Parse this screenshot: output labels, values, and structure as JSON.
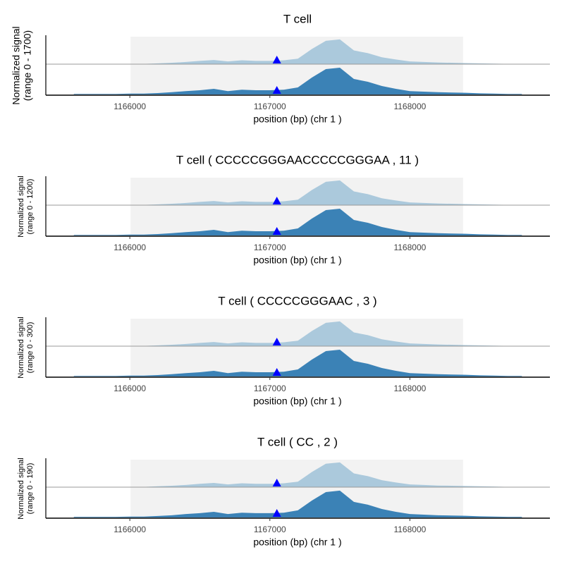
{
  "chart_data": [
    {
      "type": "area",
      "title": "T cell",
      "ylabel": [
        "Normalized signal",
        "(range 0 - 1700)"
      ],
      "xlabel": "position (bp) (chr 1 )",
      "xlim": [
        1165400,
        1169000
      ],
      "xticks": [
        1166000,
        1167000,
        1168000
      ],
      "ylim": [
        0,
        1700
      ],
      "highlight": [
        1166005,
        1168380
      ],
      "marker": 1167050,
      "x": [
        1165600,
        1165700,
        1165800,
        1165900,
        1166000,
        1166100,
        1166200,
        1166300,
        1166400,
        1166500,
        1166600,
        1166700,
        1166800,
        1166900,
        1167000,
        1167100,
        1167200,
        1167300,
        1167400,
        1167500,
        1167600,
        1167700,
        1167800,
        1167900,
        1168000,
        1168100,
        1168200,
        1168300,
        1168400,
        1168500,
        1168600,
        1168700,
        1168800
      ],
      "series": [
        {
          "color": "#abc9dc",
          "values": [
            0,
            0,
            0,
            0,
            17,
            17,
            51,
            85,
            136,
            204,
            255,
            170,
            238,
            204,
            204,
            238,
            340,
            935,
            1445,
            1530,
            850,
            680,
            425,
            289,
            170,
            136,
            102,
            85,
            68,
            51,
            34,
            17,
            17
          ]
        },
        {
          "color": "#3b82b6",
          "values": [
            34,
            34,
            34,
            34,
            51,
            51,
            85,
            136,
            204,
            255,
            340,
            204,
            289,
            255,
            255,
            289,
            425,
            1020,
            1530,
            1615,
            935,
            765,
            510,
            340,
            204,
            170,
            136,
            119,
            102,
            68,
            51,
            34,
            34
          ]
        }
      ]
    },
    {
      "type": "area",
      "title": "T cell ( CCCCCGGGAACCCCCGGGAA , 11 )",
      "ylabel": [
        "Normalized signal",
        "(range 0 - 1200)"
      ],
      "xlabel": "position (bp) (chr 1 )",
      "xlim": [
        1165400,
        1169000
      ],
      "xticks": [
        1166000,
        1167000,
        1168000
      ],
      "ylim": [
        0,
        1200
      ],
      "highlight": [
        1166005,
        1168380
      ],
      "marker": 1167050,
      "x": [
        1165600,
        1165700,
        1165800,
        1165900,
        1166000,
        1166100,
        1166200,
        1166300,
        1166400,
        1166500,
        1166600,
        1166700,
        1166800,
        1166900,
        1167000,
        1167100,
        1167200,
        1167300,
        1167400,
        1167500,
        1167600,
        1167700,
        1167800,
        1167900,
        1168000,
        1168100,
        1168200,
        1168300,
        1168400,
        1168500,
        1168600,
        1168700,
        1168800
      ],
      "series": [
        {
          "color": "#abc9dc",
          "values": [
            0,
            0,
            0,
            0,
            12,
            12,
            36,
            60,
            96,
            144,
            180,
            120,
            168,
            144,
            144,
            168,
            240,
            660,
            1020,
            1080,
            600,
            480,
            300,
            204,
            120,
            96,
            72,
            60,
            48,
            36,
            24,
            12,
            12
          ]
        },
        {
          "color": "#3b82b6",
          "values": [
            24,
            24,
            24,
            24,
            36,
            36,
            60,
            96,
            144,
            180,
            240,
            144,
            204,
            180,
            180,
            204,
            300,
            720,
            1080,
            1140,
            660,
            540,
            360,
            240,
            144,
            120,
            96,
            84,
            72,
            48,
            36,
            24,
            24
          ]
        }
      ]
    },
    {
      "type": "area",
      "title": "T cell ( CCCCCGGGAAC , 3 )",
      "ylabel": [
        "Normalized signal",
        "(range 0 - 300)"
      ],
      "xlabel": "position (bp) (chr 1 )",
      "xlim": [
        1165400,
        1169000
      ],
      "xticks": [
        1166000,
        1167000,
        1168000
      ],
      "ylim": [
        0,
        300
      ],
      "highlight": [
        1166005,
        1168380
      ],
      "marker": 1167050,
      "x": [
        1165600,
        1165700,
        1165800,
        1165900,
        1166000,
        1166100,
        1166200,
        1166300,
        1166400,
        1166500,
        1166600,
        1166700,
        1166800,
        1166900,
        1167000,
        1167100,
        1167200,
        1167300,
        1167400,
        1167500,
        1167600,
        1167700,
        1167800,
        1167900,
        1168000,
        1168100,
        1168200,
        1168300,
        1168400,
        1168500,
        1168600,
        1168700,
        1168800
      ],
      "series": [
        {
          "color": "#abc9dc",
          "values": [
            0,
            0,
            0,
            0,
            3,
            3,
            9,
            15,
            24,
            36,
            45,
            30,
            42,
            36,
            36,
            42,
            60,
            165,
            255,
            270,
            150,
            120,
            75,
            51,
            30,
            24,
            18,
            15,
            12,
            9,
            6,
            3,
            3
          ]
        },
        {
          "color": "#3b82b6",
          "values": [
            6,
            6,
            6,
            6,
            9,
            9,
            15,
            24,
            36,
            45,
            60,
            36,
            51,
            45,
            45,
            51,
            75,
            180,
            270,
            285,
            165,
            135,
            90,
            60,
            36,
            30,
            24,
            21,
            18,
            12,
            9,
            6,
            6
          ]
        }
      ]
    },
    {
      "type": "area",
      "title": "T cell ( CC , 2 )",
      "ylabel": [
        "Normalized signal",
        "(range 0 - 190)"
      ],
      "xlabel": "position (bp) (chr 1 )",
      "xlim": [
        1165400,
        1169000
      ],
      "xticks": [
        1166000,
        1167000,
        1168000
      ],
      "ylim": [
        0,
        190
      ],
      "highlight": [
        1166005,
        1168380
      ],
      "marker": 1167050,
      "x": [
        1165600,
        1165700,
        1165800,
        1165900,
        1166000,
        1166100,
        1166200,
        1166300,
        1166400,
        1166500,
        1166600,
        1166700,
        1166800,
        1166900,
        1167000,
        1167100,
        1167200,
        1167300,
        1167400,
        1167500,
        1167600,
        1167700,
        1167800,
        1167900,
        1168000,
        1168100,
        1168200,
        1168300,
        1168400,
        1168500,
        1168600,
        1168700,
        1168800
      ],
      "series": [
        {
          "color": "#abc9dc",
          "values": [
            0,
            0,
            0,
            0,
            2,
            2,
            6,
            10,
            15,
            23,
            29,
            19,
            27,
            23,
            23,
            27,
            38,
            105,
            162,
            171,
            95,
            76,
            48,
            32,
            19,
            15,
            11,
            10,
            8,
            6,
            4,
            2,
            2
          ]
        },
        {
          "color": "#3b82b6",
          "values": [
            4,
            4,
            4,
            4,
            6,
            6,
            10,
            15,
            23,
            29,
            38,
            23,
            32,
            29,
            29,
            32,
            48,
            114,
            171,
            181,
            105,
            86,
            57,
            38,
            23,
            19,
            15,
            13,
            11,
            8,
            6,
            4,
            4
          ]
        }
      ]
    }
  ]
}
